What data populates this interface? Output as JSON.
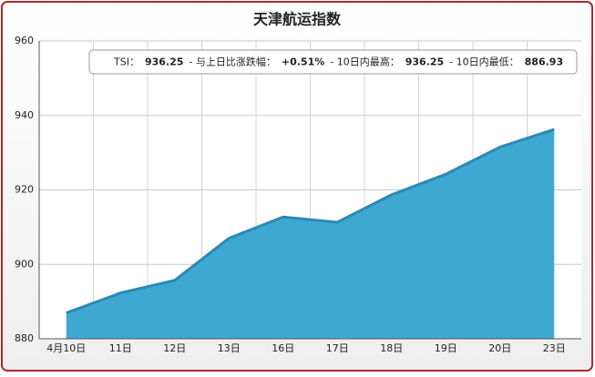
{
  "chart_data": {
    "type": "area",
    "title": "天津航运指数",
    "categories": [
      "4月10日",
      "11日",
      "12日",
      "13日",
      "16日",
      "17日",
      "18日",
      "19日",
      "20日",
      "23日"
    ],
    "values": [
      886.93,
      892.3,
      895.7,
      907,
      912.7,
      911.3,
      918.7,
      924.2,
      931.5,
      936.25
    ],
    "color": "#3ea8d3",
    "line_color": "#2b89b3",
    "ylim": [
      880,
      960
    ],
    "yticks": [
      880,
      900,
      920,
      940,
      960
    ],
    "grid": true,
    "info": [
      "TSI：",
      "936.25",
      "- 与上日比涨跌幅：",
      "+0.51%",
      "- 10日内最高：",
      "936.25",
      "- 10日内最低：",
      "886.93"
    ]
  }
}
